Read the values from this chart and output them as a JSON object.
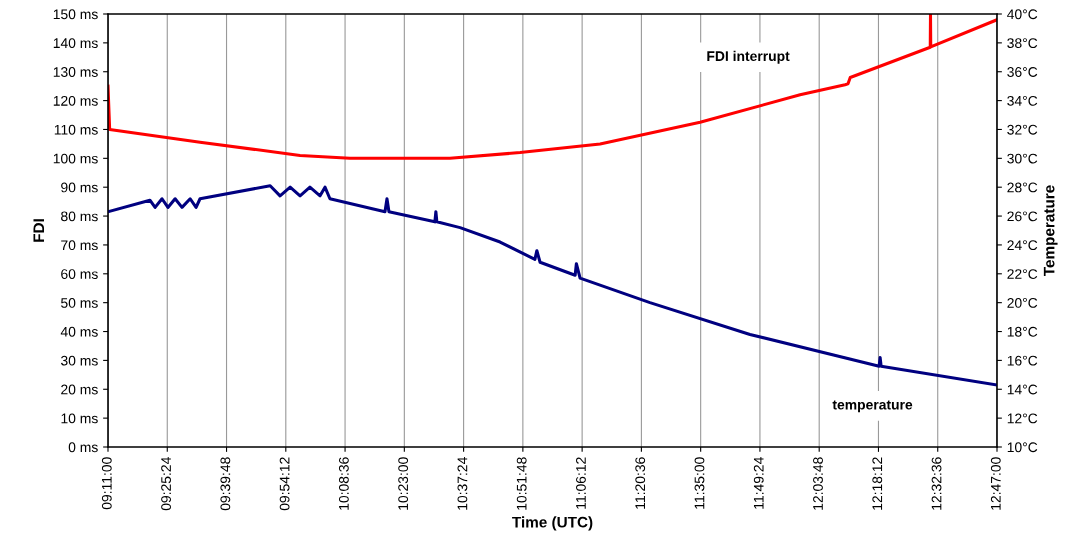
{
  "chart_data": {
    "type": "line",
    "xlabel": "Time (UTC)",
    "ylabel": "FDI",
    "y2label": "Temperature",
    "grid": "x",
    "legend": false,
    "marker": "none",
    "line_style": "solid",
    "xlim": [
      9.1833,
      12.7833
    ],
    "xticks": [
      {
        "value": 9.1833,
        "label": "09:11:00"
      },
      {
        "value": 9.4233,
        "label": "09:25:24"
      },
      {
        "value": 9.6633,
        "label": "09:39:48"
      },
      {
        "value": 9.9033,
        "label": "09:54:12"
      },
      {
        "value": 10.1433,
        "label": "10:08:36"
      },
      {
        "value": 10.3833,
        "label": "10:23:00"
      },
      {
        "value": 10.6233,
        "label": "10:37:24"
      },
      {
        "value": 10.8633,
        "label": "10:51:48"
      },
      {
        "value": 11.1033,
        "label": "11:06:12"
      },
      {
        "value": 11.3433,
        "label": "11:20:36"
      },
      {
        "value": 11.5833,
        "label": "11:35:00"
      },
      {
        "value": 11.8233,
        "label": "11:49:24"
      },
      {
        "value": 12.0633,
        "label": "12:03:48"
      },
      {
        "value": 12.3033,
        "label": "12:18:12"
      },
      {
        "value": 12.5433,
        "label": "12:32:36"
      },
      {
        "value": 12.7833,
        "label": "12:47:00"
      }
    ],
    "ylim": [
      0,
      150
    ],
    "yticks": [
      {
        "value": 0,
        "label": "0 ms"
      },
      {
        "value": 10,
        "label": "10 ms"
      },
      {
        "value": 20,
        "label": "20 ms"
      },
      {
        "value": 30,
        "label": "30 ms"
      },
      {
        "value": 40,
        "label": "40 ms"
      },
      {
        "value": 50,
        "label": "50 ms"
      },
      {
        "value": 60,
        "label": "60 ms"
      },
      {
        "value": 70,
        "label": "70 ms"
      },
      {
        "value": 80,
        "label": "80 ms"
      },
      {
        "value": 90,
        "label": "90 ms"
      },
      {
        "value": 100,
        "label": "100 ms"
      },
      {
        "value": 110,
        "label": "110 ms"
      },
      {
        "value": 120,
        "label": "120 ms"
      },
      {
        "value": 130,
        "label": "130 ms"
      },
      {
        "value": 140,
        "label": "140 ms"
      },
      {
        "value": 150,
        "label": "150 ms"
      }
    ],
    "y2lim": [
      10,
      40
    ],
    "y2ticks": [
      {
        "value": 10,
        "label": "10°C"
      },
      {
        "value": 12,
        "label": "12°C"
      },
      {
        "value": 14,
        "label": "14°C"
      },
      {
        "value": 16,
        "label": "16°C"
      },
      {
        "value": 18,
        "label": "18°C"
      },
      {
        "value": 20,
        "label": "20°C"
      },
      {
        "value": 22,
        "label": "22°C"
      },
      {
        "value": 24,
        "label": "24°C"
      },
      {
        "value": 26,
        "label": "26°C"
      },
      {
        "value": 28,
        "label": "28°C"
      },
      {
        "value": 30,
        "label": "30°C"
      },
      {
        "value": 32,
        "label": "32°C"
      },
      {
        "value": 34,
        "label": "34°C"
      },
      {
        "value": 36,
        "label": "36°C"
      },
      {
        "value": 38,
        "label": "38°C"
      },
      {
        "value": 40,
        "label": "40°C"
      }
    ],
    "series": [
      {
        "name": "FDI interrupt",
        "color": "#ff0000",
        "axis": "y",
        "x": [
          9.1833,
          9.19,
          9.556,
          9.961,
          10.163,
          10.568,
          10.852,
          11.176,
          11.581,
          11.986,
          12.168,
          12.18,
          12.189,
          12.513,
          12.514,
          12.515,
          12.7833
        ],
        "values": [
          125,
          110,
          105.6,
          101,
          100,
          100,
          102,
          105,
          112.5,
          122,
          125.5,
          125.8,
          128,
          138.5,
          150,
          138.6,
          148
        ]
      },
      {
        "name": "temperature",
        "color": "#000080",
        "axis": "y2",
        "x": [
          9.1833,
          9.353,
          9.374,
          9.402,
          9.426,
          9.455,
          9.483,
          9.516,
          9.54,
          9.556,
          9.84,
          9.88,
          9.921,
          9.961,
          10.001,
          10.042,
          10.062,
          10.082,
          10.305,
          10.313,
          10.321,
          10.507,
          10.511,
          10.515,
          10.609,
          10.771,
          10.912,
          10.92,
          10.933,
          11.075,
          11.08,
          11.095,
          11.378,
          11.783,
          12.306,
          12.31,
          12.314,
          12.7833
        ],
        "values": [
          26.3,
          27.1,
          26.6,
          27.2,
          26.6,
          27.2,
          26.6,
          27.2,
          26.6,
          27.2,
          28.1,
          27.4,
          28.0,
          27.4,
          28.0,
          27.4,
          28.0,
          27.2,
          26.3,
          27.2,
          26.3,
          25.6,
          26.3,
          25.6,
          25.2,
          24.2,
          23.0,
          23.6,
          22.8,
          21.9,
          22.7,
          21.7,
          20.0,
          17.8,
          15.6,
          16.2,
          15.6,
          14.3
        ]
      }
    ]
  }
}
